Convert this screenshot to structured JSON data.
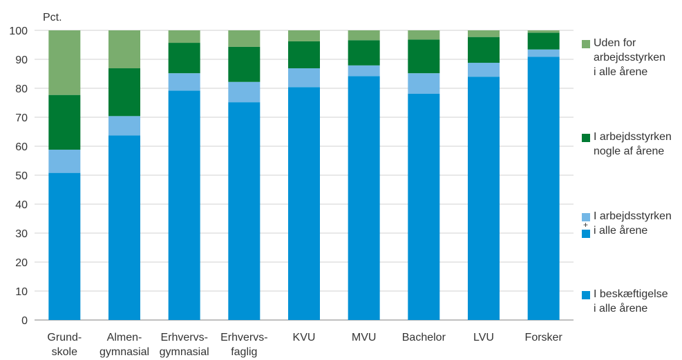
{
  "chart_data": {
    "type": "bar",
    "stacked": true,
    "ylabel": "Pct.",
    "ylim": [
      0,
      100
    ],
    "yticks": [
      0,
      10,
      20,
      30,
      40,
      50,
      60,
      70,
      80,
      90,
      100
    ],
    "grid": true,
    "legend_position": "right",
    "categories": [
      "Grund-\nskole",
      "Almen-\ngymnasial",
      "Erhvervs-\ngymnasial",
      "Erhvervs-\nfaglig",
      "KVU",
      "MVU",
      "Bachelor",
      "LVU",
      "Forsker"
    ],
    "series": [
      {
        "name": "I beskæftigelse\ni alle årene",
        "color": "#0091d5",
        "values": [
          50.8,
          63.7,
          79.2,
          75.2,
          80.4,
          84.2,
          78.1,
          84.0,
          90.9
        ]
      },
      {
        "name": "I arbejdsstyrken\ni alle årene",
        "color": "#73b7e6",
        "values": [
          8.0,
          6.7,
          6.0,
          7.0,
          6.5,
          3.7,
          7.1,
          4.8,
          2.5
        ]
      },
      {
        "name": "I arbejdsstyrken\nnogle af årene",
        "color": "#007a33",
        "values": [
          18.9,
          16.5,
          10.5,
          12.1,
          9.3,
          8.7,
          11.6,
          8.9,
          5.8
        ]
      },
      {
        "name": "Uden for\narbejdsstyrken\ni alle årene",
        "color": "#7aad6e",
        "values": [
          22.3,
          13.1,
          4.3,
          5.7,
          3.8,
          3.4,
          3.2,
          2.3,
          0.8
        ]
      }
    ],
    "legend_plus": "+"
  }
}
